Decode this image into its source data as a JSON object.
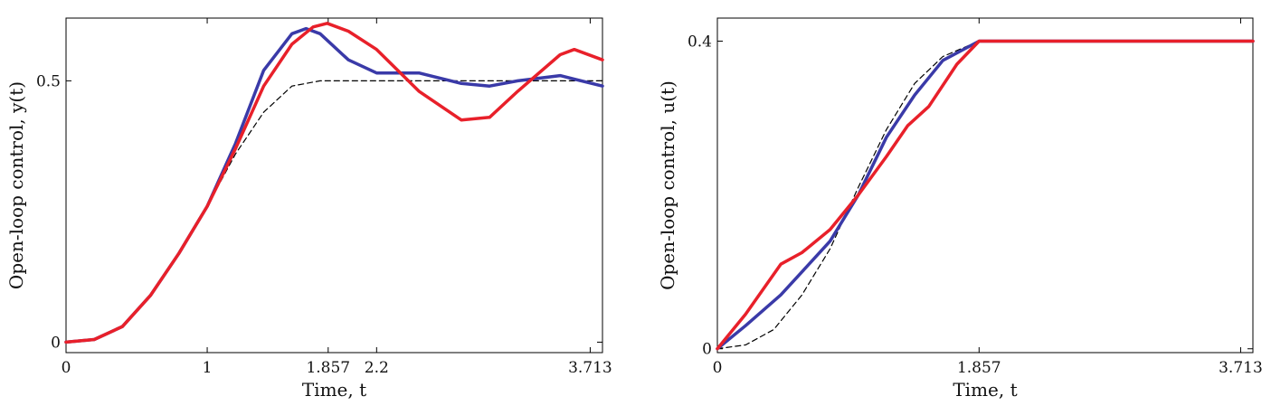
{
  "chart_data": [
    {
      "type": "line",
      "xlabel": "Time, t",
      "ylabel": "Open-loop control, y(t)",
      "xlim": [
        0,
        3.8
      ],
      "ylim": [
        -0.02,
        0.62
      ],
      "xticks": [
        0,
        1,
        1.857,
        2.2,
        3.713
      ],
      "xtick_labels": [
        "0",
        "1",
        "1.857",
        "2.2",
        "3.713"
      ],
      "yticks": [
        0,
        0.5
      ],
      "ytick_labels": [
        "0",
        "0.5"
      ],
      "grid": false,
      "series": [
        {
          "color": "#1f1a99",
          "dash": "dashed",
          "x": [
            0,
            0.2,
            0.4,
            0.6,
            0.8,
            1.0,
            1.2,
            1.4,
            1.6,
            1.8,
            2.0,
            2.5,
            3.0,
            3.5,
            3.8
          ],
          "y": [
            0,
            0.005,
            0.03,
            0.09,
            0.17,
            0.26,
            0.36,
            0.44,
            0.49,
            0.5,
            0.5,
            0.5,
            0.5,
            0.5,
            0.5
          ]
        },
        {
          "color": "#3a3aa8",
          "x": [
            0,
            0.2,
            0.4,
            0.6,
            0.8,
            1.0,
            1.2,
            1.4,
            1.6,
            1.7,
            1.8,
            2.0,
            2.2,
            2.5,
            2.8,
            3.0,
            3.2,
            3.5,
            3.8
          ],
          "y": [
            0,
            0.005,
            0.03,
            0.09,
            0.17,
            0.26,
            0.38,
            0.52,
            0.59,
            0.6,
            0.59,
            0.54,
            0.515,
            0.515,
            0.495,
            0.49,
            0.5,
            0.51,
            0.49
          ]
        },
        {
          "color": "#e8202a",
          "x": [
            0,
            0.2,
            0.4,
            0.6,
            0.8,
            1.0,
            1.2,
            1.4,
            1.6,
            1.75,
            1.85,
            2.0,
            2.2,
            2.5,
            2.8,
            3.0,
            3.2,
            3.5,
            3.6,
            3.8
          ],
          "y": [
            0,
            0.005,
            0.03,
            0.09,
            0.17,
            0.26,
            0.37,
            0.49,
            0.57,
            0.603,
            0.61,
            0.595,
            0.56,
            0.48,
            0.425,
            0.43,
            0.48,
            0.55,
            0.56,
            0.54
          ]
        }
      ]
    },
    {
      "type": "line",
      "xlabel": "Time, t",
      "ylabel": "Open-loop control, u(t)",
      "xlim": [
        0,
        3.8
      ],
      "ylim": [
        -0.005,
        0.43
      ],
      "xticks": [
        0,
        1.857,
        3.713
      ],
      "xtick_labels": [
        "0",
        "1.857",
        "3.713"
      ],
      "yticks": [
        0,
        0.4
      ],
      "ytick_labels": [
        "0",
        "0.4"
      ],
      "grid": false,
      "series": [
        {
          "color": "#1f1a99",
          "dash": "dashed",
          "x": [
            0,
            0.2,
            0.4,
            0.6,
            0.8,
            1.0,
            1.2,
            1.4,
            1.6,
            1.857,
            2.2,
            3.0,
            3.8
          ],
          "y": [
            0,
            0.005,
            0.025,
            0.07,
            0.13,
            0.21,
            0.285,
            0.345,
            0.38,
            0.4,
            0.4,
            0.4,
            0.4
          ]
        },
        {
          "color": "#3a3aa8",
          "x": [
            0,
            0.2,
            0.45,
            0.6,
            0.8,
            1.0,
            1.2,
            1.4,
            1.6,
            1.857,
            2.2,
            3.0,
            3.8
          ],
          "y": [
            0,
            0.03,
            0.07,
            0.1,
            0.14,
            0.2,
            0.275,
            0.33,
            0.375,
            0.4,
            0.4,
            0.4,
            0.4
          ]
        },
        {
          "color": "#e8202a",
          "x": [
            0,
            0.2,
            0.45,
            0.6,
            0.8,
            1.0,
            1.2,
            1.35,
            1.5,
            1.7,
            1.857,
            2.2,
            3.0,
            3.8
          ],
          "y": [
            0,
            0.045,
            0.11,
            0.125,
            0.155,
            0.2,
            0.25,
            0.29,
            0.315,
            0.37,
            0.4,
            0.4,
            0.4,
            0.4
          ]
        }
      ]
    }
  ]
}
